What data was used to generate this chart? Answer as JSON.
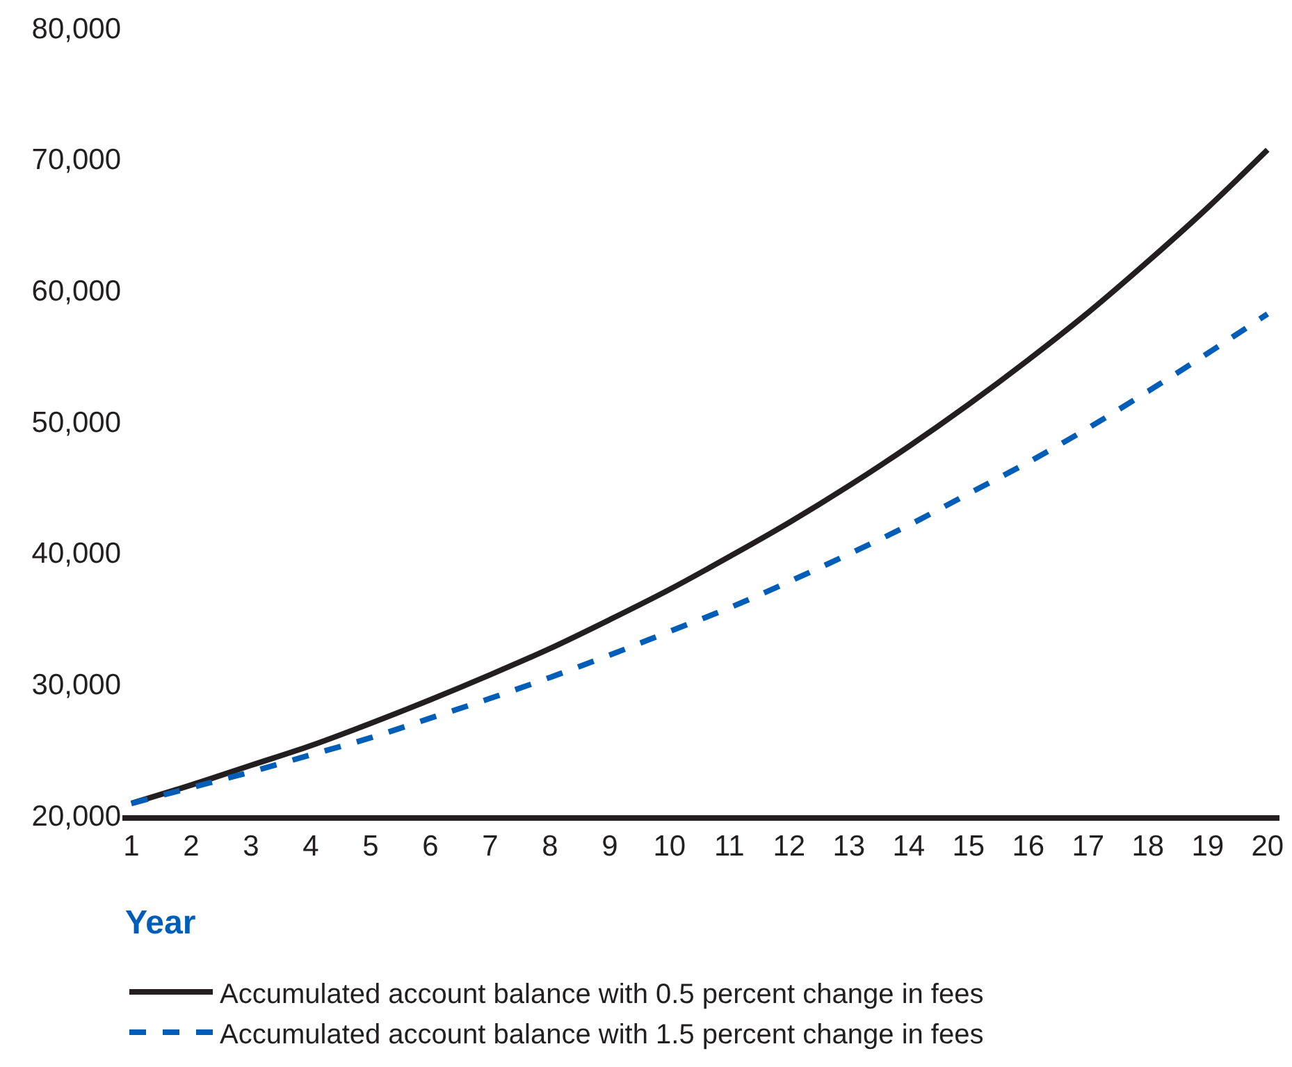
{
  "chart_data": {
    "type": "line",
    "xlabel": "Year",
    "x": [
      1,
      2,
      3,
      4,
      5,
      6,
      7,
      8,
      9,
      10,
      11,
      12,
      13,
      14,
      15,
      16,
      17,
      18,
      19,
      20
    ],
    "series": [
      {
        "name": "Accumulated account balance with 0.5 percent change in fees",
        "color": "#231f20",
        "line_style": "solid",
        "values": [
          20900,
          22300,
          23800,
          25300,
          27000,
          28800,
          30700,
          32700,
          34900,
          37200,
          39700,
          42300,
          45100,
          48100,
          51300,
          54700,
          58300,
          62200,
          66300,
          70700
        ]
      },
      {
        "name": "Accumulated account balance with 1.5 percent change in fees",
        "color": "#005eb8",
        "line_style": "dashed",
        "values": [
          20900,
          22100,
          23300,
          24600,
          25900,
          27400,
          28900,
          30500,
          32200,
          34000,
          35800,
          37800,
          39900,
          42100,
          44500,
          46900,
          49500,
          52300,
          55200,
          58200
        ]
      }
    ],
    "xlim": [
      0.85,
      20.2
    ],
    "xticks": [
      1,
      2,
      3,
      4,
      5,
      6,
      7,
      8,
      9,
      10,
      11,
      12,
      13,
      14,
      15,
      16,
      17,
      18,
      19,
      20
    ],
    "ylim": [
      20000,
      80000
    ],
    "yticks": [
      {
        "value": 20000,
        "label": "20,000"
      },
      {
        "value": 30000,
        "label": "30,000"
      },
      {
        "value": 40000,
        "label": "40,000"
      },
      {
        "value": 50000,
        "label": "50,000"
      },
      {
        "value": 60000,
        "label": "60,000"
      },
      {
        "value": 70000,
        "label": "70,000"
      },
      {
        "value": 80000,
        "label": "80,000"
      }
    ],
    "legend": "bottom",
    "marker": "none"
  }
}
